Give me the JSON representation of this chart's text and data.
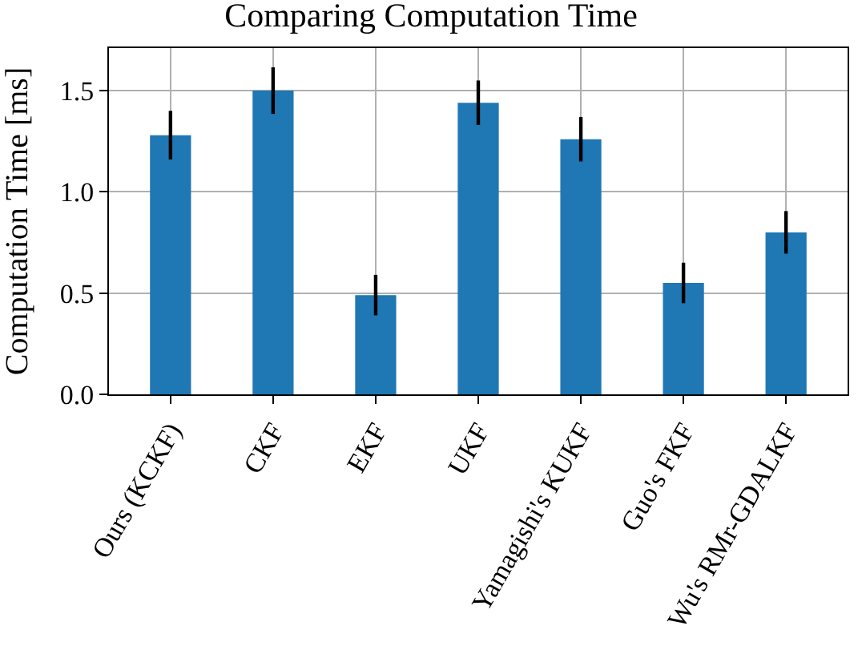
{
  "chart_data": {
    "type": "bar",
    "title": "Comparing Computation Time",
    "ylabel": "Computation Time [ms]",
    "categories": [
      "Ours (KCKF)",
      "CKF",
      "EKF",
      "UKF",
      "Yamagishi's KUKF",
      "Guo's FKF",
      "Wu's RMr-GDALKF"
    ],
    "values": [
      1.28,
      1.5,
      0.49,
      1.44,
      1.26,
      0.55,
      0.8
    ],
    "errors": [
      0.12,
      0.115,
      0.1,
      0.11,
      0.11,
      0.1,
      0.105
    ],
    "color": "#1f77b4",
    "ylim": [
      0,
      1.71
    ],
    "yticks": [
      {
        "value": 0,
        "label": "0.0"
      },
      {
        "value": 0.5,
        "label": "0.5"
      },
      {
        "value": 1,
        "label": "1.0"
      },
      {
        "value": 1.5,
        "label": "1.5"
      }
    ],
    "grid": true,
    "legend": false
  }
}
